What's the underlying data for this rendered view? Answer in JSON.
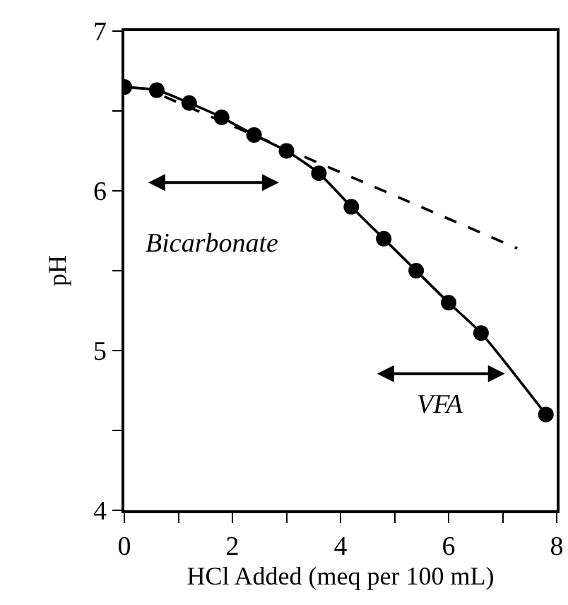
{
  "chart_data": {
    "type": "line",
    "xlabel": "HCl Added (meq per 100 mL)",
    "ylabel": "pH",
    "xlim": [
      0,
      8
    ],
    "ylim": [
      4,
      7
    ],
    "xticks": [
      0,
      {
        "value": 1,
        "label": null
      },
      2,
      {
        "value": 3,
        "label": null
      },
      4,
      {
        "value": 5,
        "label": null
      },
      6,
      {
        "value": 7,
        "label": null
      },
      8
    ],
    "yticks": [
      4,
      {
        "value": 4.5,
        "label": null
      },
      5,
      {
        "value": 5.5,
        "label": null
      },
      6,
      {
        "value": 6.5,
        "label": null
      },
      7
    ],
    "legend": false,
    "series": [
      {
        "x": [
          0,
          0.6,
          1.2,
          1.8,
          2.4,
          3,
          3.6,
          4.2,
          4.8,
          5.4,
          6,
          6.6,
          7.8
        ],
        "values": [
          6.65,
          6.63,
          6.55,
          6.46,
          6.35,
          6.25,
          6.11,
          5.9,
          5.7,
          5.5,
          5.3,
          5.11,
          4.6
        ],
        "color": "#000000",
        "marker": "circle",
        "line_style": "solid"
      },
      {
        "type": "line",
        "x": [
          0.74,
          7.27
        ],
        "values": [
          6.59,
          5.64
        ],
        "color": "#000000",
        "marker": "none",
        "line_style": "dashed"
      }
    ],
    "annotations": [
      "Bicarbonate",
      "VFA"
    ]
  }
}
